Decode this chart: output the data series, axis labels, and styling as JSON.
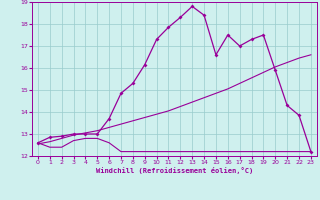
{
  "xlabel": "Windchill (Refroidissement éolien,°C)",
  "bg_color": "#cff0ee",
  "line_color": "#990099",
  "grid_color": "#99cccc",
  "xlim": [
    -0.5,
    23.5
  ],
  "ylim": [
    12,
    19
  ],
  "yticks": [
    12,
    13,
    14,
    15,
    16,
    17,
    18,
    19
  ],
  "xticks": [
    0,
    1,
    2,
    3,
    4,
    5,
    6,
    7,
    8,
    9,
    10,
    11,
    12,
    13,
    14,
    15,
    16,
    17,
    18,
    19,
    20,
    21,
    22,
    23
  ],
  "line1_x": [
    0,
    1,
    2,
    3,
    4,
    5,
    6,
    7,
    8,
    9,
    10,
    11,
    12,
    13,
    14,
    15,
    16,
    17,
    18,
    19,
    20,
    21,
    22,
    23
  ],
  "line1_y": [
    12.6,
    12.4,
    12.4,
    12.7,
    12.8,
    12.8,
    12.6,
    12.2,
    12.2,
    12.2,
    12.2,
    12.2,
    12.2,
    12.2,
    12.2,
    12.2,
    12.2,
    12.2,
    12.2,
    12.2,
    12.2,
    12.2,
    12.2,
    12.2
  ],
  "line2_x": [
    0,
    1,
    2,
    3,
    4,
    5,
    6,
    7,
    8,
    9,
    10,
    11,
    12,
    13,
    14,
    15,
    16,
    17,
    18,
    19,
    20,
    21,
    22,
    23
  ],
  "line2_y": [
    12.55,
    12.65,
    12.8,
    12.95,
    13.05,
    13.15,
    13.3,
    13.45,
    13.6,
    13.75,
    13.9,
    14.05,
    14.25,
    14.45,
    14.65,
    14.85,
    15.05,
    15.3,
    15.55,
    15.8,
    16.05,
    16.25,
    16.45,
    16.6
  ],
  "line3_x": [
    0,
    1,
    2,
    3,
    4,
    5,
    6,
    7,
    8,
    9,
    10,
    11,
    12,
    13,
    14,
    15,
    16,
    17,
    18,
    19,
    20,
    21,
    22,
    23
  ],
  "line3_y": [
    12.6,
    12.85,
    12.9,
    13.0,
    13.0,
    13.0,
    13.7,
    14.85,
    15.3,
    16.15,
    17.3,
    17.85,
    18.3,
    18.8,
    18.4,
    16.6,
    17.5,
    17.0,
    17.3,
    17.5,
    15.9,
    14.3,
    13.85,
    12.2
  ]
}
